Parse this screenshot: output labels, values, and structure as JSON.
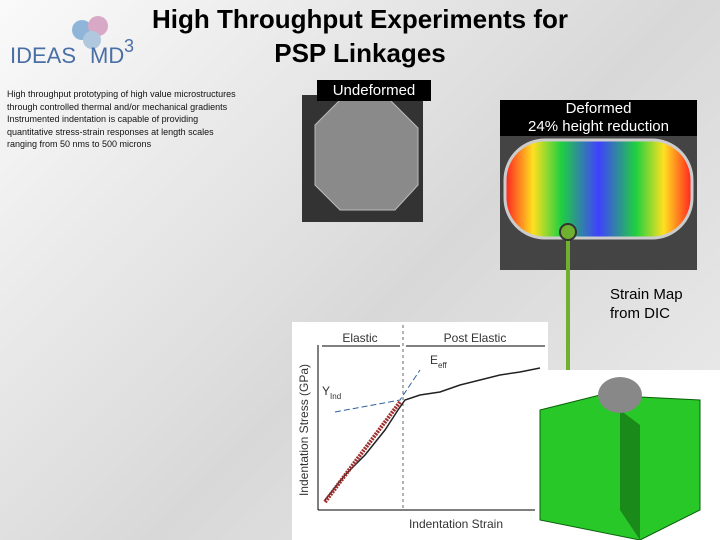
{
  "header": {
    "title": "High Throughput Experiments for PSP Linkages",
    "logo": {
      "text": "IDEAS",
      "suffix": "MD",
      "superscript": "3"
    }
  },
  "description": [
    "High throughput prototyping of high value microstructures",
    "through controlled thermal and/or mechanical gradients",
    "Instrumented indentation is capable of providing",
    "quantitative stress-strain responses at length scales",
    "ranging from 50 nms to 500 microns"
  ],
  "images": {
    "undeformed": {
      "label": "Undeformed"
    },
    "deformed": {
      "label_lines": [
        "Deformed",
        "24% height reduction"
      ]
    },
    "strain_map": {
      "label": "Strain Map from DIC"
    }
  },
  "plot": {
    "regions": [
      "Elastic",
      "Post Elastic"
    ],
    "annotations": {
      "e_eff": {
        "symbol": "E",
        "subscript": "eff"
      },
      "y_ind": {
        "symbol": "Y",
        "subscript": "Ind"
      }
    },
    "y_axis_label": "Indentation Stress (GPa)",
    "x_axis_label": "Indentation Strain"
  }
}
